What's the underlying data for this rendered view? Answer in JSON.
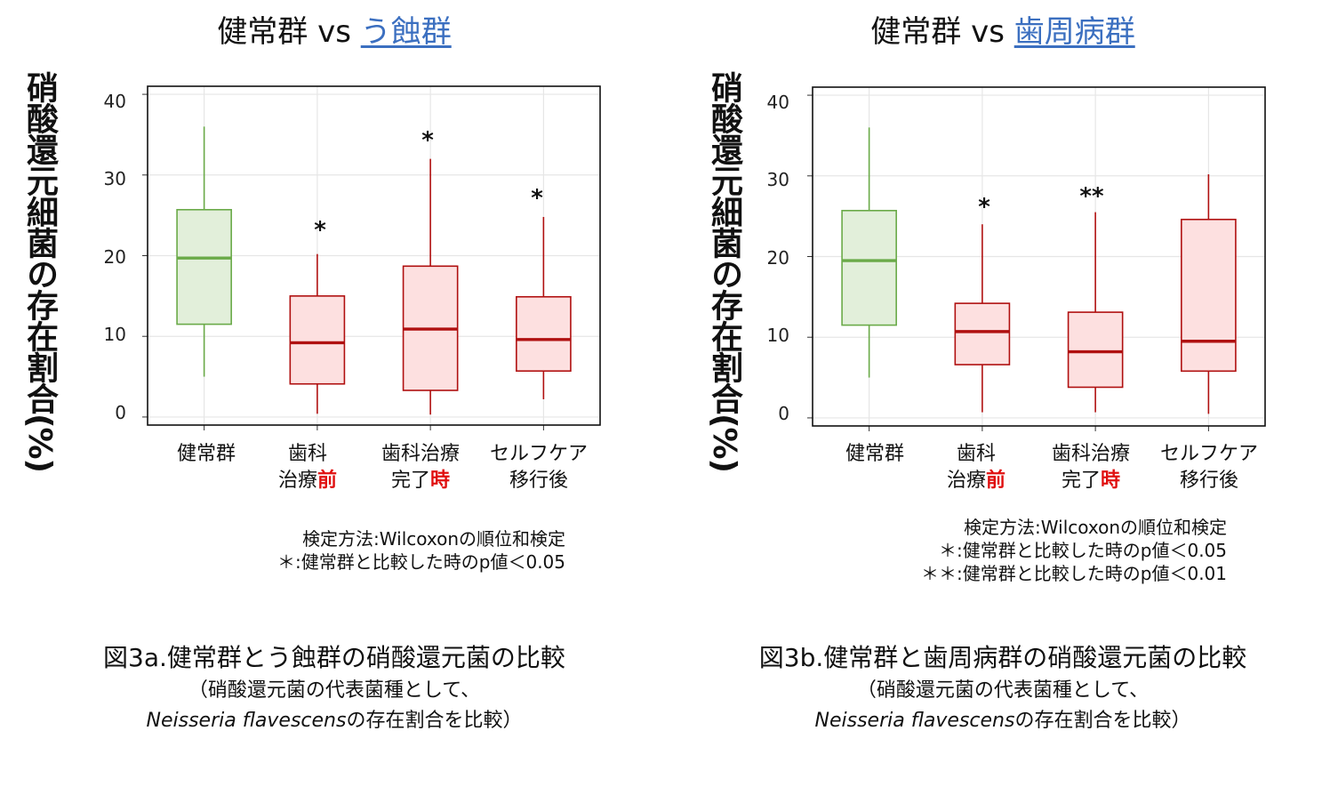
{
  "colors": {
    "healthy_stroke": "#6aaa48",
    "healthy_fill": "#e2efda",
    "treat_stroke": "#b01010",
    "treat_fill": "#fde0e0",
    "title_highlight": "#3b6fc0",
    "emphasis_red": "#e01010"
  },
  "y_axis_label": "硝酸還元細菌の存在割合(%)",
  "categories": [
    {
      "line1": "健常群",
      "line2": "",
      "red": ""
    },
    {
      "line1": "歯科",
      "line2": "治療",
      "red": "前"
    },
    {
      "line1": "歯科治療",
      "line2": "完了",
      "red": "時"
    },
    {
      "line1": "セルフケア",
      "line2": "移行後",
      "red": ""
    }
  ],
  "panels": [
    {
      "title_prefix": "健常群 vs ",
      "title_highlight": "う蝕群",
      "notes": [
        "検定方法:Wilcoxonの順位和検定",
        "＊:健常群と比較した時のp値＜0.05"
      ],
      "caption_line1": "図3a.健常群とう蝕群の硝酸還元菌の比較",
      "caption_line2": "（硝酸還元菌の代表菌種として、",
      "caption_italic": "Neisseria flavescens",
      "caption_line3_rest": "の存在割合を比較）"
    },
    {
      "title_prefix": "健常群 vs ",
      "title_highlight": "歯周病群",
      "notes": [
        "検定方法:Wilcoxonの順位和検定",
        "＊:健常群と比較した時のp値＜0.05",
        "＊＊:健常群と比較した時のp値＜0.01"
      ],
      "caption_line1": "図3b.健常群と歯周病群の硝酸還元菌の比較",
      "caption_line2": "（硝酸還元菌の代表菌種として、",
      "caption_italic": "Neisseria  flavescens",
      "caption_line3_rest": "の存在割合を比較）"
    }
  ],
  "chart_data": [
    {
      "type": "boxplot",
      "title": "健常群 vs う蝕群",
      "ylabel": "硝酸還元細菌の存在割合(%)",
      "ylim": [
        -1,
        41
      ],
      "yticks": [
        0,
        10,
        20,
        30,
        40
      ],
      "grid": true,
      "categories": [
        "健常群",
        "歯科治療前",
        "歯科治療完了時",
        "セルフケア移行後"
      ],
      "boxes": [
        {
          "min": 5,
          "q1": 11.5,
          "median": 19.7,
          "q3": 25.7,
          "max": 36,
          "sig": ""
        },
        {
          "min": 0.4,
          "q1": 4.1,
          "median": 9.2,
          "q3": 15,
          "max": 20.2,
          "sig": "*"
        },
        {
          "min": 0.3,
          "q1": 3.3,
          "median": 10.9,
          "q3": 18.7,
          "max": 32,
          "sig": "*"
        },
        {
          "min": 2.2,
          "q1": 5.7,
          "median": 9.6,
          "q3": 14.9,
          "max": 24.8,
          "sig": "*"
        }
      ]
    },
    {
      "type": "boxplot",
      "title": "健常群 vs 歯周病群",
      "ylabel": "硝酸還元細菌の存在割合(%)",
      "ylim": [
        -1,
        41
      ],
      "yticks": [
        0,
        10,
        20,
        30,
        40
      ],
      "grid": true,
      "categories": [
        "健常群",
        "歯科治療前",
        "歯科治療完了時",
        "セルフケア移行後"
      ],
      "boxes": [
        {
          "min": 5,
          "q1": 11.5,
          "median": 19.5,
          "q3": 25.7,
          "max": 36,
          "sig": ""
        },
        {
          "min": 0.7,
          "q1": 6.6,
          "median": 10.7,
          "q3": 14.2,
          "max": 24,
          "sig": "*"
        },
        {
          "min": 0.7,
          "q1": 3.8,
          "median": 8.2,
          "q3": 13.1,
          "max": 25.5,
          "sig": "**"
        },
        {
          "min": 0.5,
          "q1": 5.8,
          "median": 9.5,
          "q3": 24.6,
          "max": 30.2,
          "sig": ""
        }
      ]
    }
  ]
}
